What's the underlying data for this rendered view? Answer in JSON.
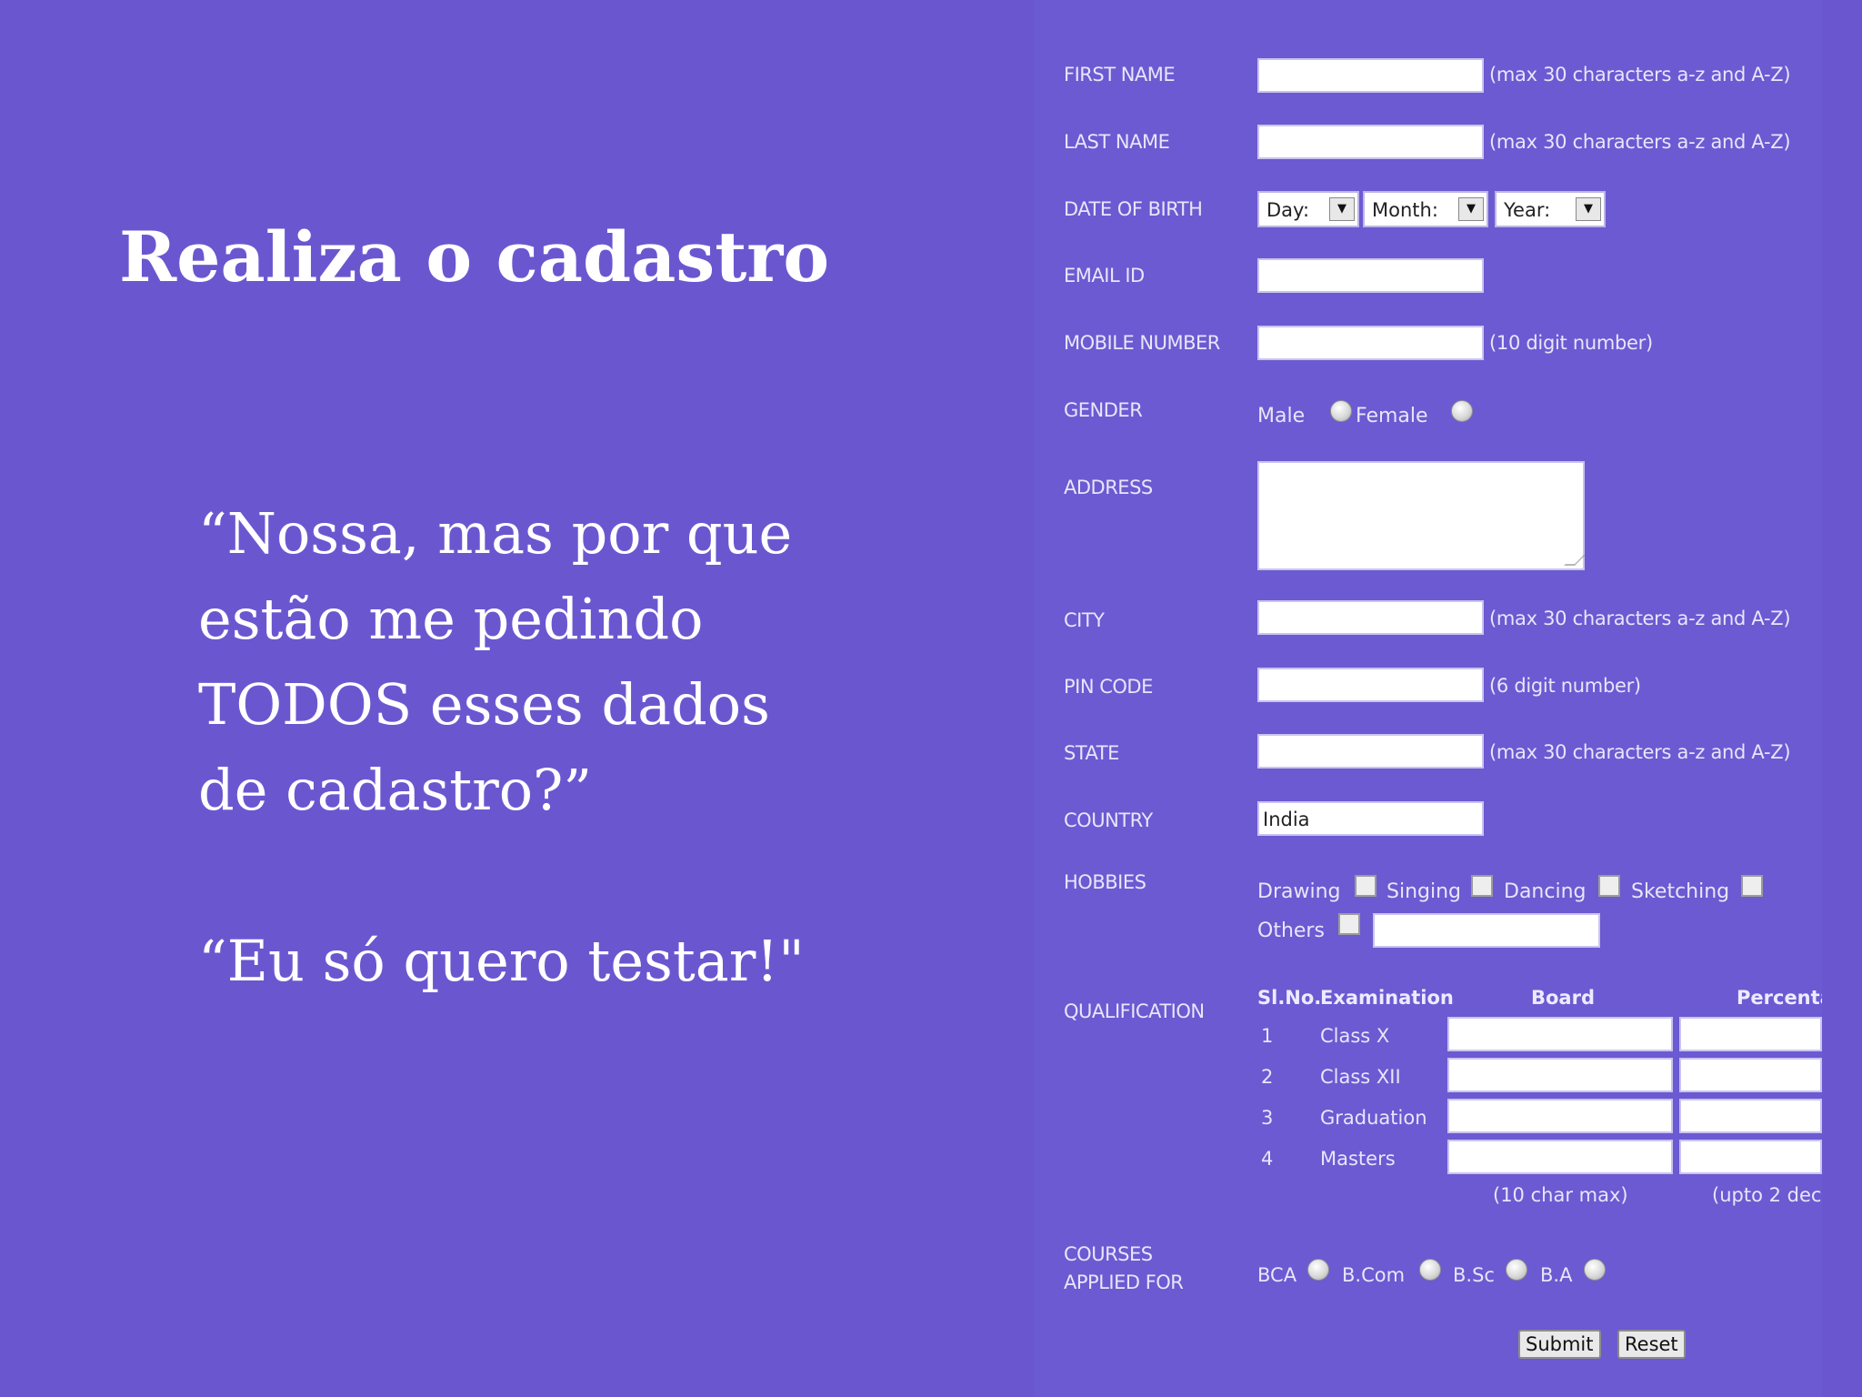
{
  "slide": {
    "title": "Realiza o cadastro",
    "quote_lines": [
      "“Nossa, mas por que",
      "estão me pedindo",
      "TODOS esses dados",
      "de cadastro?”"
    ],
    "quote2": "“Eu só quero testar!\""
  },
  "form": {
    "first_name": {
      "label": "FIRST NAME",
      "value": "",
      "hint": "(max 30 characters a-z and A-Z)"
    },
    "last_name": {
      "label": "LAST NAME",
      "value": "",
      "hint": "(max 30 characters a-z and A-Z)"
    },
    "dob": {
      "label": "DATE OF BIRTH",
      "day": "Day:",
      "month": "Month:",
      "year": "Year:"
    },
    "email": {
      "label": "EMAIL ID",
      "value": ""
    },
    "mobile": {
      "label": "MOBILE NUMBER",
      "value": "",
      "hint": "(10 digit number)"
    },
    "gender": {
      "label": "GENDER",
      "male": "Male",
      "female": "Female"
    },
    "address": {
      "label": "ADDRESS",
      "value": ""
    },
    "city": {
      "label": "CITY",
      "value": "",
      "hint": "(max 30 characters a-z and A-Z)"
    },
    "pin": {
      "label": "PIN CODE",
      "value": "",
      "hint": "(6 digit number)"
    },
    "state": {
      "label": "STATE",
      "value": "",
      "hint": "(max 30 characters a-z and A-Z)"
    },
    "country": {
      "label": "COUNTRY",
      "value": "India"
    },
    "hobbies": {
      "label": "HOBBIES",
      "items": [
        "Drawing",
        "Singing",
        "Dancing",
        "Sketching",
        "Others"
      ]
    },
    "qualification": {
      "label": "QUALIFICATION",
      "headers": [
        "Sl.No.",
        "Examination",
        "Board",
        "Percenta"
      ],
      "rows": [
        {
          "no": "1",
          "exam": "Class X"
        },
        {
          "no": "2",
          "exam": "Class XII"
        },
        {
          "no": "3",
          "exam": "Graduation"
        },
        {
          "no": "4",
          "exam": "Masters"
        }
      ],
      "board_note": "(10 char max)",
      "pct_note": "(upto 2 dec"
    },
    "courses": {
      "label_line1": "COURSES",
      "label_line2": "APPLIED FOR",
      "options": [
        "BCA",
        "B.Com",
        "B.Sc",
        "B.A"
      ]
    },
    "submit": "Submit",
    "reset": "Reset"
  },
  "colors": {
    "background": "#6a57d0",
    "text": "#ffffff"
  }
}
